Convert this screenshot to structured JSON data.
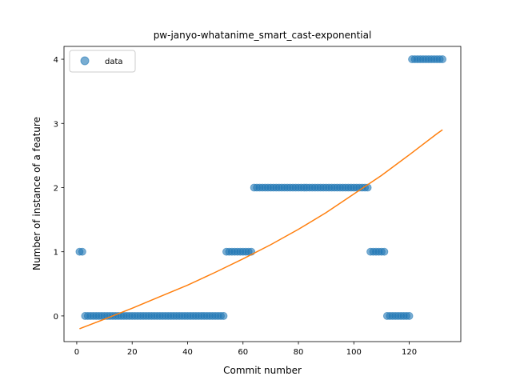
{
  "chart_data": {
    "type": "scatter",
    "title": "pw-janyo-whatanime_smart_cast-exponential",
    "xlabel": "Commit number",
    "ylabel": "Number of instance of a feature",
    "xlim": [
      -4.6,
      138.6
    ],
    "ylim": [
      -0.4,
      4.2
    ],
    "xticks": [
      0,
      20,
      40,
      60,
      80,
      100,
      120
    ],
    "yticks": [
      0,
      1,
      2,
      3,
      4
    ],
    "grid": false,
    "legend": {
      "placement": "top-left",
      "entries": [
        "data"
      ]
    },
    "colors": {
      "data": "#1f77b4",
      "fit": "#ff7f0e"
    },
    "series": [
      {
        "name": "data",
        "kind": "scatter",
        "points": [
          [
            1,
            1
          ],
          [
            2,
            1
          ],
          [
            3,
            0
          ],
          [
            4,
            0
          ],
          [
            5,
            0
          ],
          [
            6,
            0
          ],
          [
            7,
            0
          ],
          [
            8,
            0
          ],
          [
            9,
            0
          ],
          [
            10,
            0
          ],
          [
            11,
            0
          ],
          [
            12,
            0
          ],
          [
            13,
            0
          ],
          [
            14,
            0
          ],
          [
            15,
            0
          ],
          [
            16,
            0
          ],
          [
            17,
            0
          ],
          [
            18,
            0
          ],
          [
            19,
            0
          ],
          [
            20,
            0
          ],
          [
            21,
            0
          ],
          [
            22,
            0
          ],
          [
            23,
            0
          ],
          [
            24,
            0
          ],
          [
            25,
            0
          ],
          [
            26,
            0
          ],
          [
            27,
            0
          ],
          [
            28,
            0
          ],
          [
            29,
            0
          ],
          [
            30,
            0
          ],
          [
            31,
            0
          ],
          [
            32,
            0
          ],
          [
            33,
            0
          ],
          [
            34,
            0
          ],
          [
            35,
            0
          ],
          [
            36,
            0
          ],
          [
            37,
            0
          ],
          [
            38,
            0
          ],
          [
            39,
            0
          ],
          [
            40,
            0
          ],
          [
            41,
            0
          ],
          [
            42,
            0
          ],
          [
            43,
            0
          ],
          [
            44,
            0
          ],
          [
            45,
            0
          ],
          [
            46,
            0
          ],
          [
            47,
            0
          ],
          [
            48,
            0
          ],
          [
            49,
            0
          ],
          [
            50,
            0
          ],
          [
            51,
            0
          ],
          [
            52,
            0
          ],
          [
            53,
            0
          ],
          [
            54,
            1
          ],
          [
            55,
            1
          ],
          [
            56,
            1
          ],
          [
            57,
            1
          ],
          [
            58,
            1
          ],
          [
            59,
            1
          ],
          [
            60,
            1
          ],
          [
            61,
            1
          ],
          [
            62,
            1
          ],
          [
            63,
            1
          ],
          [
            64,
            2
          ],
          [
            65,
            2
          ],
          [
            66,
            2
          ],
          [
            67,
            2
          ],
          [
            68,
            2
          ],
          [
            69,
            2
          ],
          [
            70,
            2
          ],
          [
            71,
            2
          ],
          [
            72,
            2
          ],
          [
            73,
            2
          ],
          [
            74,
            2
          ],
          [
            75,
            2
          ],
          [
            76,
            2
          ],
          [
            77,
            2
          ],
          [
            78,
            2
          ],
          [
            79,
            2
          ],
          [
            80,
            2
          ],
          [
            81,
            2
          ],
          [
            82,
            2
          ],
          [
            83,
            2
          ],
          [
            84,
            2
          ],
          [
            85,
            2
          ],
          [
            86,
            2
          ],
          [
            87,
            2
          ],
          [
            88,
            2
          ],
          [
            89,
            2
          ],
          [
            90,
            2
          ],
          [
            91,
            2
          ],
          [
            92,
            2
          ],
          [
            93,
            2
          ],
          [
            94,
            2
          ],
          [
            95,
            2
          ],
          [
            96,
            2
          ],
          [
            97,
            2
          ],
          [
            98,
            2
          ],
          [
            99,
            2
          ],
          [
            100,
            2
          ],
          [
            101,
            2
          ],
          [
            102,
            2
          ],
          [
            103,
            2
          ],
          [
            104,
            2
          ],
          [
            105,
            2
          ],
          [
            106,
            1
          ],
          [
            107,
            1
          ],
          [
            108,
            1
          ],
          [
            109,
            1
          ],
          [
            110,
            1
          ],
          [
            111,
            1
          ],
          [
            112,
            0
          ],
          [
            113,
            0
          ],
          [
            114,
            0
          ],
          [
            115,
            0
          ],
          [
            116,
            0
          ],
          [
            117,
            0
          ],
          [
            118,
            0
          ],
          [
            119,
            0
          ],
          [
            120,
            0
          ],
          [
            121,
            4
          ],
          [
            122,
            4
          ],
          [
            123,
            4
          ],
          [
            124,
            4
          ],
          [
            125,
            4
          ],
          [
            126,
            4
          ],
          [
            127,
            4
          ],
          [
            128,
            4
          ],
          [
            129,
            4
          ],
          [
            130,
            4
          ],
          [
            131,
            4
          ],
          [
            132,
            4
          ]
        ]
      },
      {
        "kind": "line",
        "points": [
          [
            1,
            -0.2
          ],
          [
            10,
            -0.05
          ],
          [
            20,
            0.12
          ],
          [
            30,
            0.3
          ],
          [
            40,
            0.48
          ],
          [
            50,
            0.68
          ],
          [
            60,
            0.89
          ],
          [
            70,
            1.11
          ],
          [
            80,
            1.35
          ],
          [
            90,
            1.61
          ],
          [
            100,
            1.9
          ],
          [
            110,
            2.19
          ],
          [
            120,
            2.51
          ],
          [
            130,
            2.84
          ],
          [
            132,
            2.9
          ]
        ]
      }
    ]
  }
}
